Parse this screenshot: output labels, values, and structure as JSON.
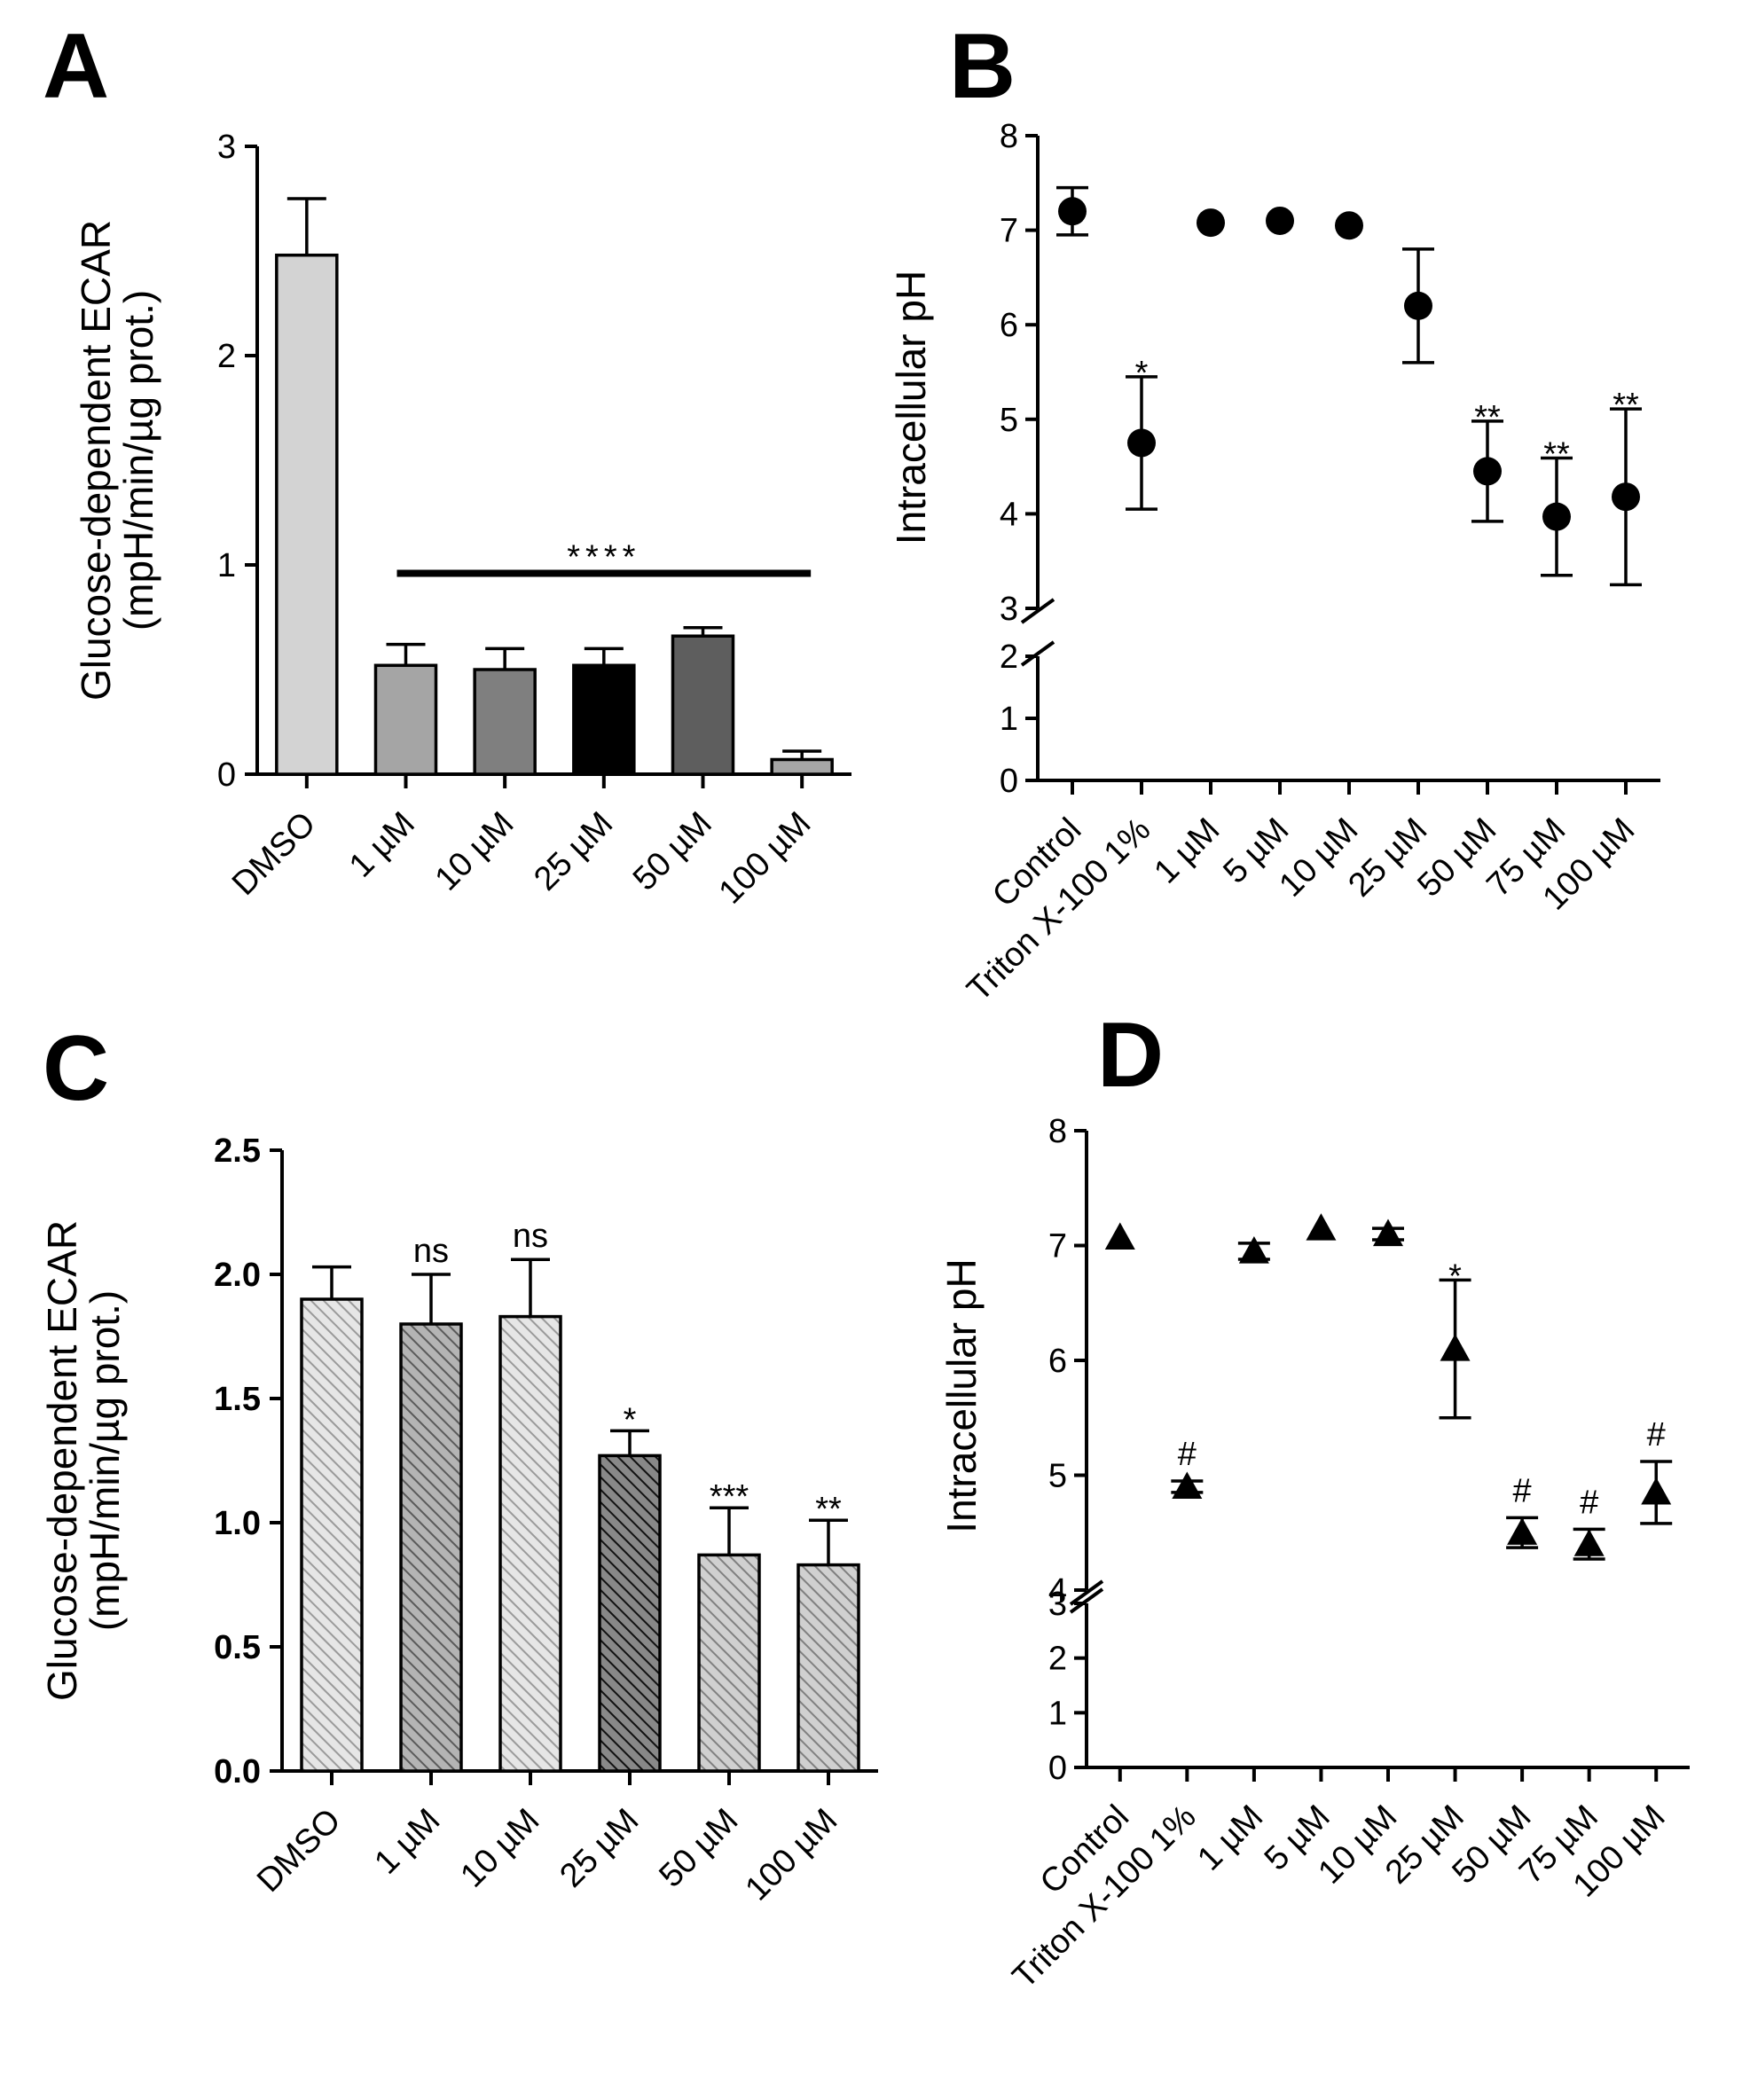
{
  "chart_data": [
    {
      "panel": "A",
      "type": "bar",
      "ylabel": [
        "Glucose-dependent  ECAR",
        "(mpH/min/µg prot.)"
      ],
      "ylim": [
        0,
        3
      ],
      "yticks": [
        "0",
        "1",
        "2",
        "3"
      ],
      "categories": [
        "DMSO",
        "1 µM",
        "10 µM",
        "25 µM",
        "50 µM",
        "100 µM"
      ],
      "values": [
        2.48,
        0.52,
        0.5,
        0.52,
        0.66,
        0.07
      ],
      "errors": [
        0.27,
        0.1,
        0.1,
        0.08,
        0.04,
        0.04
      ],
      "colors": [
        "#d3d3d3",
        "#a5a5a5",
        "#7f7f7f",
        "#000000",
        "#5e5e5e",
        "#a5a5a5"
      ],
      "annotations": [
        {
          "text": "****",
          "from": 1,
          "to": 5,
          "y": 0.96
        }
      ]
    },
    {
      "panel": "B",
      "type": "scatter",
      "marker": "circle",
      "ylabel": "Intracellular pH",
      "ylim": [
        0,
        8
      ],
      "axis_break": [
        2,
        3
      ],
      "yticks": [
        "0",
        "1",
        "2",
        "3",
        "4",
        "5",
        "6",
        "7",
        "8"
      ],
      "categories": [
        "Control",
        "Triton X-100 1%",
        "1 µM",
        "5 µM",
        "10 µM",
        "25 µM",
        "50 µM",
        "75 µM",
        "100 µM"
      ],
      "values": [
        7.2,
        4.75,
        7.08,
        7.1,
        7.05,
        6.2,
        4.45,
        3.97,
        4.18
      ],
      "errors": [
        0.25,
        0.7,
        0.02,
        0.02,
        0.02,
        0.6,
        0.53,
        0.62,
        0.93
      ],
      "labels": [
        "",
        "*",
        "",
        "",
        "",
        "",
        "**",
        "**",
        "**"
      ]
    },
    {
      "panel": "C",
      "type": "bar",
      "ylabel": [
        "Glucose-dependent  ECAR",
        "(mpH/min/µg prot.)"
      ],
      "ylim": [
        0,
        2.5
      ],
      "yticks": [
        "0.0",
        "0.5",
        "1.0",
        "1.5",
        "2.0",
        "2.5"
      ],
      "categories": [
        "DMSO",
        "1 µM",
        "10 µM",
        "25 µM",
        "50 µM",
        "100 µM"
      ],
      "values": [
        1.9,
        1.8,
        1.83,
        1.27,
        0.87,
        0.83
      ],
      "errors": [
        0.13,
        0.2,
        0.23,
        0.1,
        0.19,
        0.18
      ],
      "colors": [
        "#c8c8c8",
        "#808080",
        "#c8c8c8",
        "#1a1a1a",
        "#a0a0a0",
        "#a0a0a0"
      ],
      "labels": [
        "",
        "ns",
        "ns",
        "*",
        "***",
        "**"
      ]
    },
    {
      "panel": "D",
      "type": "scatter",
      "marker": "triangle",
      "ylabel": "Intracellular pH",
      "ylim": [
        0,
        8
      ],
      "axis_break": [
        3,
        4
      ],
      "yticks": [
        "0",
        "1",
        "2",
        "3",
        "4",
        "5",
        "6",
        "7",
        "8"
      ],
      "categories": [
        "Control",
        "Triton X-100 1%",
        "1 µM",
        "5 µM",
        "10 µM",
        "25 µM",
        "50 µM",
        "75 µM",
        "100 µM"
      ],
      "values": [
        7.07,
        4.9,
        6.95,
        7.15,
        7.1,
        6.1,
        4.5,
        4.4,
        4.85
      ],
      "errors": [
        0.03,
        0.05,
        0.07,
        0.03,
        0.05,
        0.6,
        0.13,
        0.13,
        0.27
      ],
      "labels": [
        "",
        "#",
        "",
        "",
        "",
        "*",
        "#",
        "#",
        "#"
      ]
    }
  ]
}
